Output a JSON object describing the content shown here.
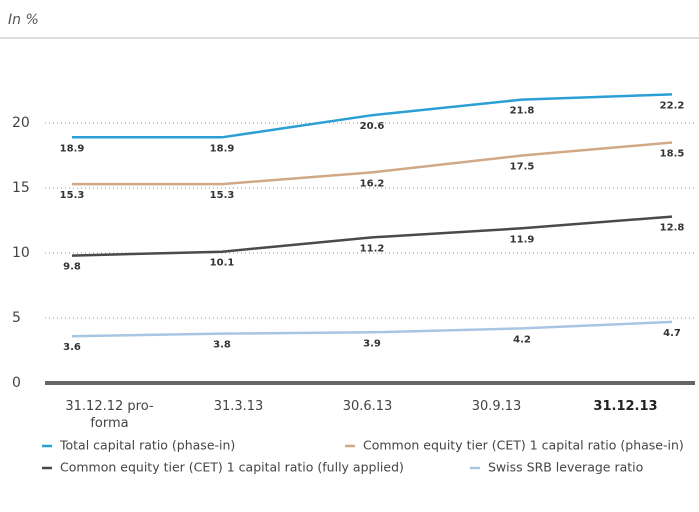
{
  "chart_data": {
    "type": "line",
    "subtitle": "In %",
    "categories": [
      "31.12.12 pro-forma",
      "31.3.13",
      "30.6.13",
      "30.9.13",
      "31.12.13"
    ],
    "series": [
      {
        "name": "Total capital ratio (phase-in)",
        "color": "#2b9fd5",
        "values": [
          18.9,
          18.9,
          20.6,
          21.8,
          22.2
        ]
      },
      {
        "name": "Common equity tier (CET) 1 capital ratio (phase-in)",
        "color": "#d2a987",
        "values": [
          15.3,
          15.3,
          16.2,
          17.5,
          18.5
        ]
      },
      {
        "name": "Common equity tier (CET) 1 capital ratio (fully applied)",
        "color": "#4a4a4a",
        "values": [
          9.8,
          10.1,
          11.2,
          11.9,
          12.8
        ]
      },
      {
        "name": "Swiss SRB leverage ratio",
        "color": "#a8c6e2",
        "values": [
          3.6,
          3.8,
          3.9,
          4.2,
          4.7
        ]
      }
    ],
    "ylim": [
      0,
      25
    ],
    "yticks": [
      0,
      5,
      10,
      15,
      20
    ],
    "grid": true
  }
}
